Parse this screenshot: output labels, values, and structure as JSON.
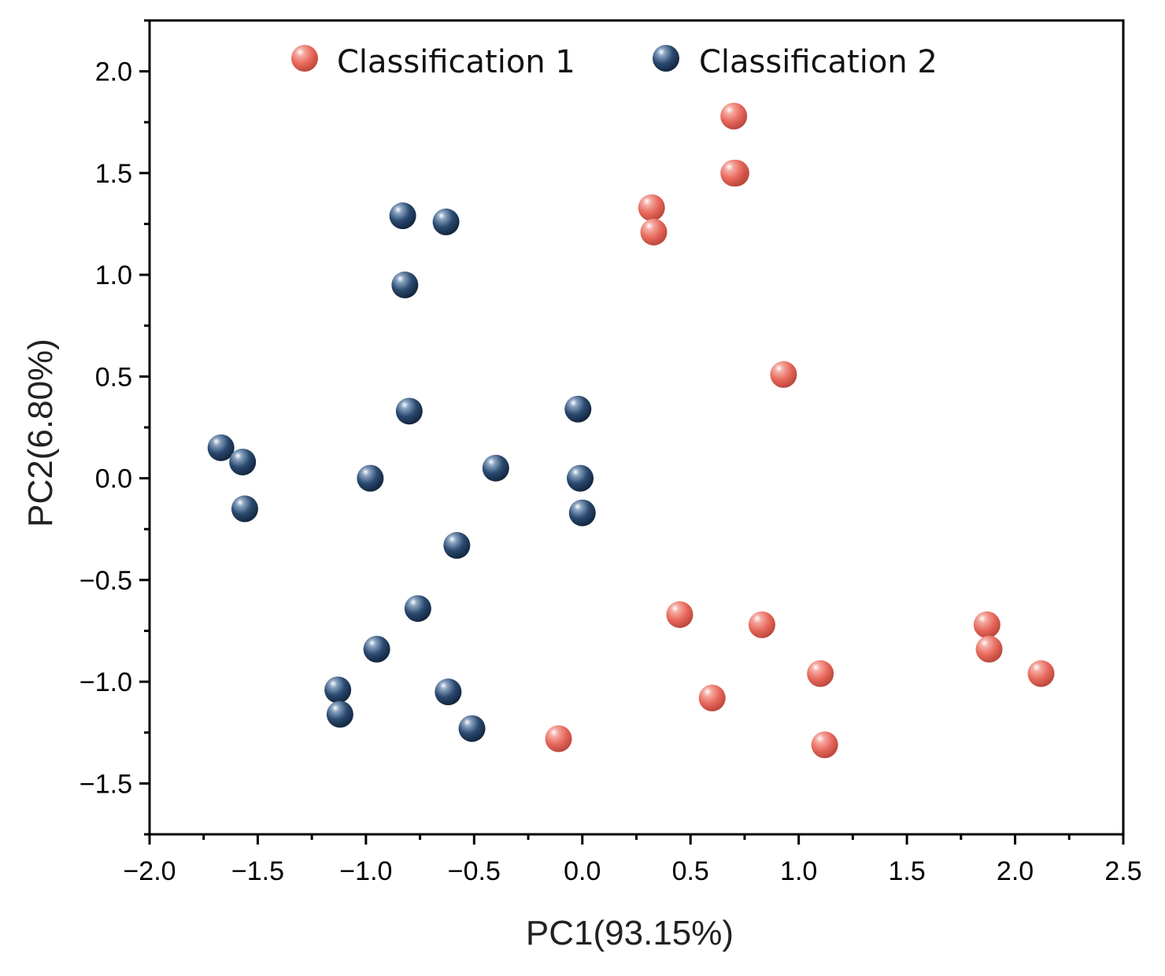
{
  "chart_data": {
    "type": "scatter",
    "xlabel": "PC1(93.15%)",
    "ylabel": "PC2(6.80%)",
    "xlim": [
      -2.0,
      2.5
    ],
    "ylim": [
      -1.75,
      2.25
    ],
    "xticks": [
      -2.0,
      -1.5,
      -1.0,
      -0.5,
      0.0,
      0.5,
      1.0,
      1.5,
      2.0,
      2.5
    ],
    "xtick_labels": [
      "−2.0",
      "−1.5",
      "−1.0",
      "−0.5",
      "0.0",
      "0.5",
      "1.0",
      "1.5",
      "2.0",
      "2.5"
    ],
    "yticks": [
      -1.5,
      -1.0,
      -0.5,
      0.0,
      0.5,
      1.0,
      1.5,
      2.0
    ],
    "ytick_labels": [
      "−1.5",
      "−1.0",
      "−0.5",
      "0.0",
      "0.5",
      "1.0",
      "1.5",
      "2.0"
    ],
    "grid": false,
    "legend_position": "top",
    "series": [
      {
        "name": "Classification 1",
        "color": "#e8685c",
        "points": [
          [
            0.7,
            1.78
          ],
          [
            0.71,
            1.5
          ],
          [
            0.7,
            1.5
          ],
          [
            0.32,
            1.33
          ],
          [
            0.33,
            1.21
          ],
          [
            0.93,
            0.51
          ],
          [
            0.45,
            -0.67
          ],
          [
            0.83,
            -0.72
          ],
          [
            1.87,
            -0.72
          ],
          [
            1.88,
            -0.84
          ],
          [
            1.1,
            -0.96
          ],
          [
            2.12,
            -0.96
          ],
          [
            0.6,
            -1.08
          ],
          [
            -0.11,
            -1.28
          ],
          [
            1.12,
            -1.31
          ]
        ]
      },
      {
        "name": "Classification 2",
        "color": "#2a4a70",
        "points": [
          [
            -0.83,
            1.29
          ],
          [
            -0.63,
            1.26
          ],
          [
            -0.82,
            0.95
          ],
          [
            -0.8,
            0.33
          ],
          [
            -0.02,
            0.34
          ],
          [
            -1.67,
            0.15
          ],
          [
            -1.57,
            0.08
          ],
          [
            -0.98,
            0.0
          ],
          [
            -0.4,
            0.05
          ],
          [
            -0.01,
            0.0
          ],
          [
            -1.56,
            -0.15
          ],
          [
            0.0,
            -0.17
          ],
          [
            -0.58,
            -0.33
          ],
          [
            -0.76,
            -0.64
          ],
          [
            -0.95,
            -0.84
          ],
          [
            -1.13,
            -1.04
          ],
          [
            -0.62,
            -1.05
          ],
          [
            -1.12,
            -1.16
          ],
          [
            -0.51,
            -1.23
          ]
        ]
      }
    ]
  }
}
